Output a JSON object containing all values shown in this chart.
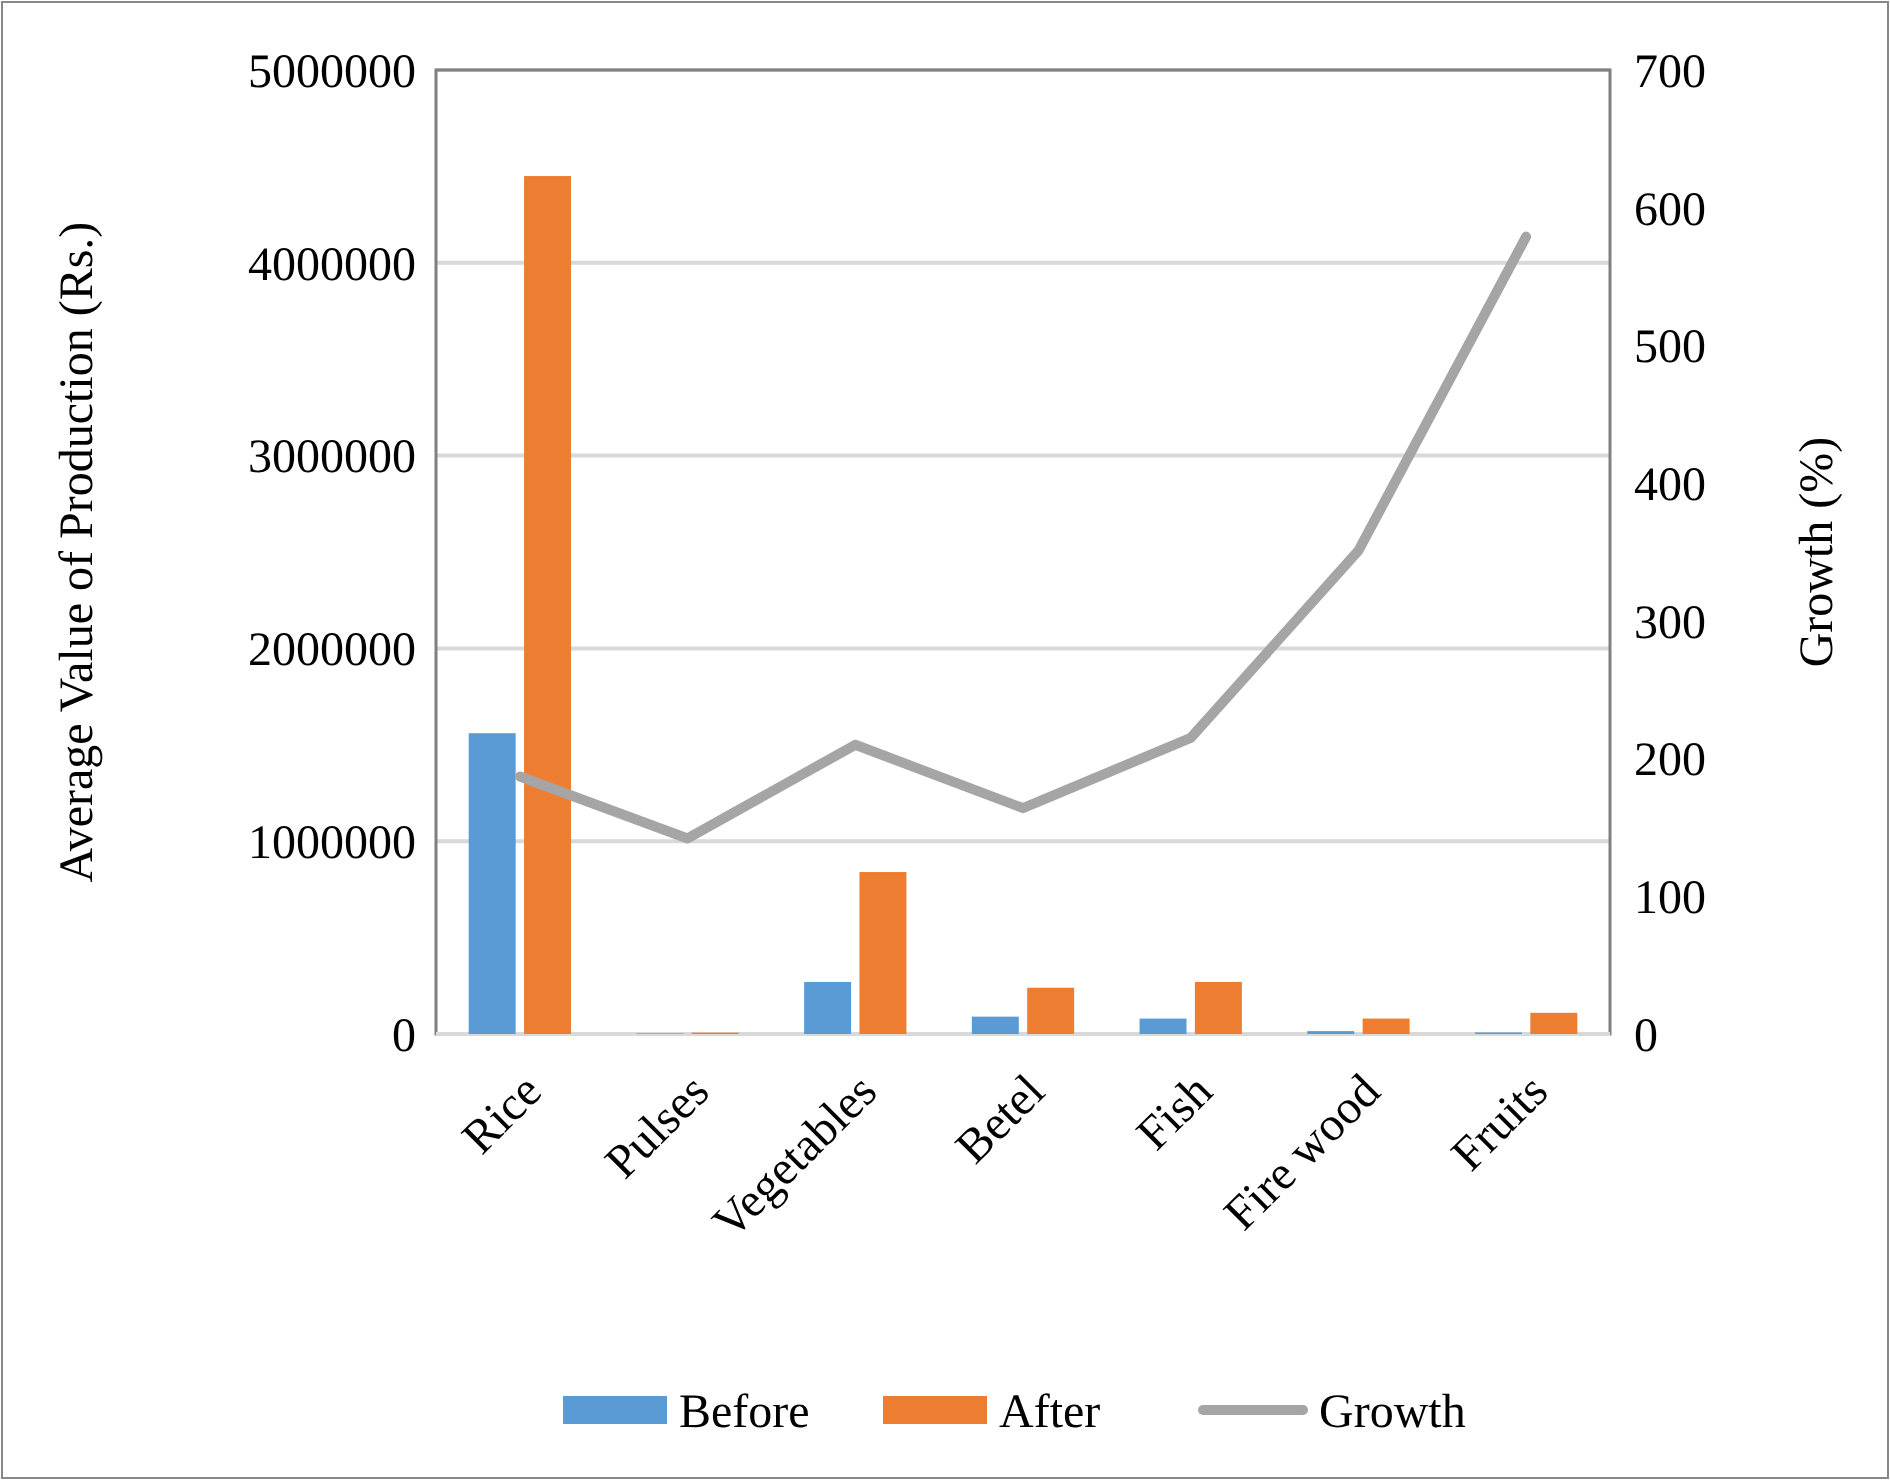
{
  "chart_data": {
    "type": "bar",
    "categories": [
      "Rice",
      "Pulses",
      "Vegetables",
      "Betel",
      "Fish",
      "Fire wood",
      "Fruits"
    ],
    "ylabel": "Average Value of Production (Rs.)",
    "y2label": "Growth (%)",
    "series": [
      {
        "name": "Before",
        "color": "#5b9bd5",
        "values": [
          1560000,
          3000,
          270000,
          90000,
          80000,
          15000,
          8000
        ]
      },
      {
        "name": "After",
        "color": "#ed7d31",
        "values": [
          4450000,
          7000,
          840000,
          240000,
          270000,
          80000,
          110000
        ]
      },
      {
        "name": "Growth",
        "type": "line",
        "axis": "y2",
        "color": "#a5a5a5",
        "values": [
          187,
          142,
          210,
          164,
          215,
          351,
          579
        ]
      }
    ],
    "ylim": [
      0,
      5000000
    ],
    "yticks": [
      0,
      1000000,
      2000000,
      3000000,
      4000000,
      5000000
    ],
    "y2lim": [
      0,
      700
    ],
    "y2ticks": [
      0,
      100,
      200,
      300,
      400,
      500,
      600,
      700
    ],
    "grid": "y",
    "legend": "bottom"
  }
}
